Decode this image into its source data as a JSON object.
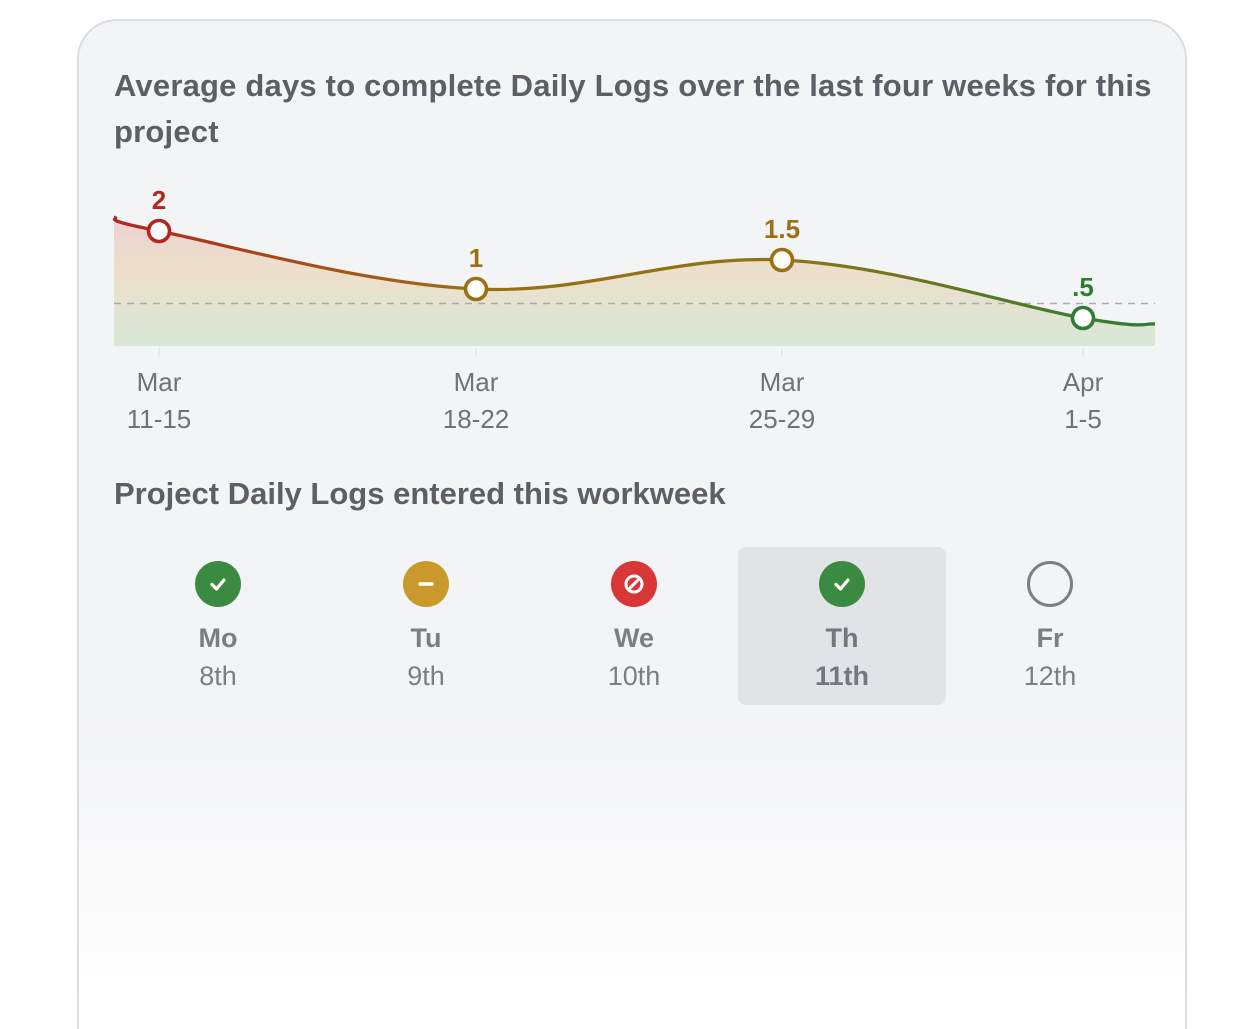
{
  "chart_data": {
    "type": "line",
    "title": "Average days to complete Daily Logs over the last four weeks for this project",
    "categories": [
      {
        "month": "Mar",
        "range": "11-15"
      },
      {
        "month": "Mar",
        "range": "18-22"
      },
      {
        "month": "Mar",
        "range": "25-29"
      },
      {
        "month": "Apr",
        "range": "1-5"
      }
    ],
    "values": [
      2,
      1,
      1.5,
      0.5
    ],
    "data_labels": [
      "2",
      "1",
      "1.5",
      ".5"
    ],
    "point_colors": [
      "#b3261e",
      "#9a7012",
      "#9a7012",
      "#2e7d32"
    ],
    "reference_line": 0.75,
    "ylim": [
      0,
      2.5
    ],
    "grid": false,
    "legend": "none",
    "colors": {
      "high": "#b3261e",
      "mid": "#9a7012",
      "low": "#2e7d32"
    }
  },
  "workweek": {
    "title": "Project Daily Logs entered this workweek",
    "days": [
      {
        "name": "Mo",
        "date": "8th",
        "status": "complete",
        "icon": "check-circle-icon",
        "color": "#3a8a42",
        "selected": false
      },
      {
        "name": "Tu",
        "date": "9th",
        "status": "partial",
        "icon": "minus-circle-icon",
        "color": "#c99a2b",
        "selected": false
      },
      {
        "name": "We",
        "date": "10th",
        "status": "missed",
        "icon": "prohibited-circle-icon",
        "color": "#d93636",
        "selected": false
      },
      {
        "name": "Th",
        "date": "11th",
        "status": "complete",
        "icon": "check-circle-icon",
        "color": "#3a8a42",
        "selected": true
      },
      {
        "name": "Fr",
        "date": "12th",
        "status": "pending",
        "icon": "empty-circle-icon",
        "color": "#7b7e85",
        "selected": false
      }
    ]
  }
}
